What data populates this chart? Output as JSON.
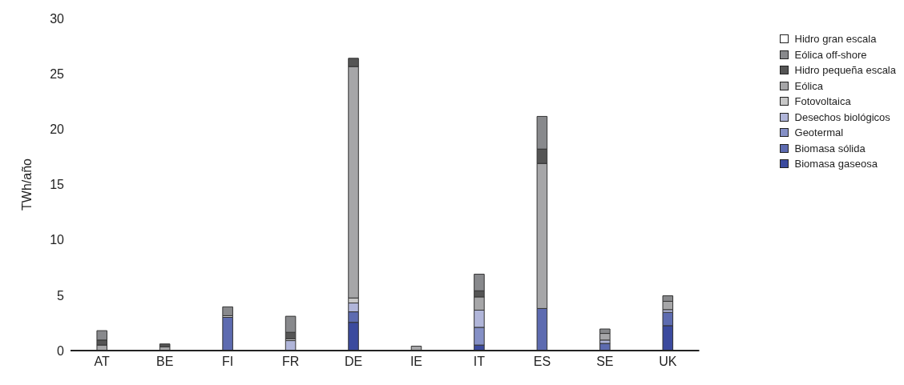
{
  "chart_data": {
    "type": "bar",
    "ylabel": "TWh/año",
    "categories": [
      "AT",
      "BE",
      "FI",
      "FR",
      "DE",
      "IE",
      "IT",
      "ES",
      "SE",
      "UK"
    ],
    "stacked": true,
    "ylim": [
      0,
      30
    ],
    "yticks": [
      0,
      5,
      10,
      15,
      20,
      25,
      30
    ],
    "grid": false,
    "legend": "top right",
    "series": [
      {
        "name": "Biomasa gaseosa",
        "color": "#3b4a9e",
        "values": [
          null,
          null,
          null,
          null,
          2.55,
          null,
          0.5,
          null,
          null,
          2.25
        ]
      },
      {
        "name": "Biomasa sólida",
        "color": "#5d6bb0",
        "values": [
          null,
          null,
          3.0,
          null,
          0.95,
          null,
          null,
          3.8,
          0.65,
          1.2
        ]
      },
      {
        "name": "Geotermal",
        "color": "#8590c6",
        "values": [
          null,
          null,
          null,
          null,
          null,
          null,
          1.6,
          null,
          null,
          null
        ]
      },
      {
        "name": "Desechos biológicos",
        "color": "#b0b5d9",
        "values": [
          null,
          null,
          null,
          0.9,
          0.8,
          null,
          1.55,
          null,
          0.3,
          0.25
        ]
      },
      {
        "name": "Fotovoltaica",
        "color": "#c8c8c8",
        "values": [
          null,
          null,
          0.15,
          0.15,
          0.45,
          null,
          null,
          null,
          null,
          null
        ]
      },
      {
        "name": "Eólica",
        "color": "#a6a6a8",
        "values": [
          0.5,
          0.35,
          null,
          null,
          20.9,
          0.4,
          1.2,
          13.1,
          0.6,
          0.75
        ]
      },
      {
        "name": "Hidro pequeña escala",
        "color": "#555555",
        "values": [
          0.45,
          0.25,
          null,
          0.6,
          0.75,
          null,
          0.55,
          1.3,
          null,
          null
        ]
      },
      {
        "name": "Eólica off-shore",
        "color": "#88898c",
        "values": [
          0.85,
          null,
          0.8,
          1.45,
          null,
          null,
          1.5,
          2.95,
          0.4,
          0.5
        ]
      },
      {
        "name": "Hidro gran escala",
        "color": "#ffffff",
        "values": [
          null,
          null,
          null,
          null,
          null,
          null,
          null,
          null,
          null,
          null
        ]
      }
    ]
  }
}
